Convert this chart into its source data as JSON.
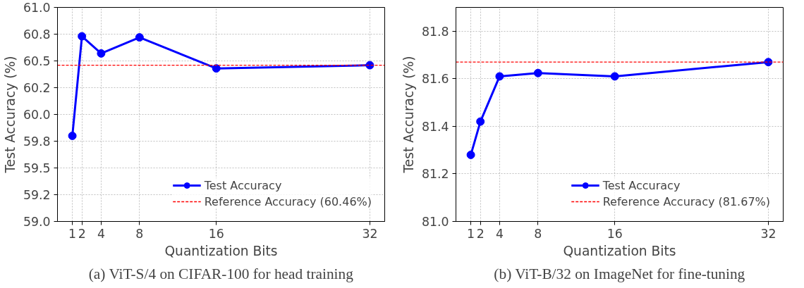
{
  "chart_data": [
    {
      "type": "line",
      "xlabel": "Quantization Bits",
      "ylabel": "Test Accuracy (%)",
      "x": [
        1,
        2,
        4,
        8,
        16,
        32
      ],
      "series": [
        {
          "name": "Test Accuracy",
          "color": "#0000ff",
          "values": [
            59.8,
            60.73,
            60.57,
            60.72,
            60.43,
            60.46
          ]
        }
      ],
      "xlim": [
        -0.55,
        33.55
      ],
      "xticks": [
        1,
        2,
        4,
        8,
        16,
        32
      ],
      "ylim": [
        59.0,
        61.0
      ],
      "yticks": [
        {
          "value": 59.0,
          "label": "59.0"
        },
        {
          "value": 59.25,
          "label": "59.2"
        },
        {
          "value": 59.5,
          "label": "59.5"
        },
        {
          "value": 59.75,
          "label": "59.8"
        },
        {
          "value": 60.0,
          "label": "60.0"
        },
        {
          "value": 60.25,
          "label": "60.2"
        },
        {
          "value": 60.5,
          "label": "60.5"
        },
        {
          "value": 60.75,
          "label": "60.8"
        },
        {
          "value": 61.0,
          "label": "61.0"
        }
      ],
      "ref_lines": [
        {
          "axis": "y",
          "value": 60.46,
          "label": "Reference Accuracy (60.46%)",
          "color": "#ff0000",
          "line_style": "dashed"
        }
      ],
      "annotations": [
        "(a) ViT-S/4 on CIFAR-100 for head training"
      ],
      "grid": true,
      "legend": "bottom right",
      "marker": "circle",
      "line_style": "solid"
    },
    {
      "type": "line",
      "xlabel": "Quantization Bits",
      "ylabel": "Test Accuracy (%)",
      "x": [
        1,
        2,
        4,
        8,
        16,
        32
      ],
      "series": [
        {
          "name": "Test Accuracy",
          "color": "#0000ff",
          "values": [
            81.28,
            81.42,
            81.61,
            81.624,
            81.61,
            81.67
          ]
        }
      ],
      "xlim": [
        -0.55,
        33.55
      ],
      "xticks": [
        1,
        2,
        4,
        8,
        16,
        32
      ],
      "ylim": [
        81.0,
        81.9
      ],
      "yticks": [
        {
          "value": 81.0,
          "label": "81.0"
        },
        {
          "value": 81.2,
          "label": "81.2"
        },
        {
          "value": 81.4,
          "label": "81.4"
        },
        {
          "value": 81.6,
          "label": "81.6"
        },
        {
          "value": 81.8,
          "label": "81.8"
        }
      ],
      "ref_lines": [
        {
          "axis": "y",
          "value": 81.67,
          "label": "Reference Accuracy (81.67%)",
          "color": "#ff0000",
          "line_style": "dashed"
        }
      ],
      "annotations": [
        "(b) ViT-B/32 on ImageNet for fine-tuning"
      ],
      "grid": true,
      "legend": "bottom right",
      "marker": "circle",
      "line_style": "solid"
    }
  ]
}
